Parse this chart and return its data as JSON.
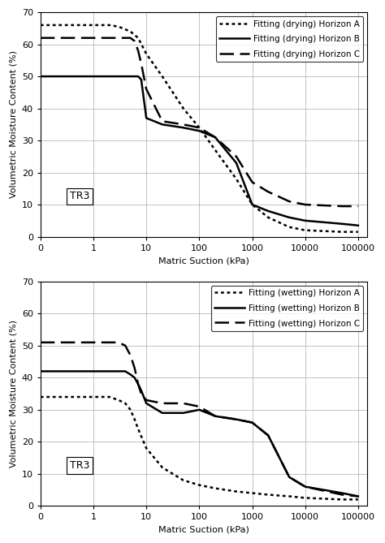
{
  "drying": {
    "ylabel": "Volumetric Moisture Content (%)",
    "xlabel": "Matric Suction (kPa)",
    "ylim": [
      0,
      70
    ],
    "label_box": "TR3",
    "horizonA": {
      "label": "Fitting (drying) Horizon A",
      "linestyle": "dotted",
      "linewidth": 1.8,
      "color": "black",
      "x": [
        0.1,
        0.5,
        1.0,
        2.0,
        3.0,
        5.0,
        7.0,
        10.0,
        20.0,
        50.0,
        100.0,
        200.0,
        500.0,
        1000.0,
        2000.0,
        5000.0,
        10000.0,
        50000.0,
        100000.0
      ],
      "y": [
        66,
        66,
        66,
        66,
        65.5,
        64,
        62,
        57,
        50,
        40,
        34,
        27,
        18,
        10,
        6,
        3,
        2,
        1.5,
        1.5
      ]
    },
    "horizonB": {
      "label": "Fitting (drying) Horizon B",
      "linestyle": "solid",
      "linewidth": 1.8,
      "color": "black",
      "x": [
        0.1,
        0.5,
        1.0,
        2.0,
        3.0,
        5.0,
        7.0,
        8.0,
        10.0,
        20.0,
        50.0,
        100.0,
        200.0,
        500.0,
        1000.0,
        2000.0,
        5000.0,
        10000.0,
        50000.0,
        100000.0
      ],
      "y": [
        50,
        50,
        50,
        50,
        50,
        50,
        50,
        49,
        37,
        35,
        34,
        33,
        31,
        23,
        10,
        8,
        6,
        5,
        4,
        3.5
      ]
    },
    "horizonC": {
      "label": "Fitting (drying) Horizon C",
      "linestyle": "dashed",
      "linewidth": 1.8,
      "color": "black",
      "x": [
        0.1,
        0.5,
        1.0,
        2.0,
        3.0,
        5.0,
        6.0,
        7.0,
        8.0,
        10.0,
        20.0,
        50.0,
        100.0,
        200.0,
        500.0,
        1000.0,
        2000.0,
        5000.0,
        10000.0,
        50000.0,
        100000.0
      ],
      "y": [
        62,
        62,
        62,
        62,
        62,
        62,
        61,
        58,
        54,
        46,
        36,
        35,
        34,
        31,
        25,
        17,
        14,
        11,
        10,
        9.5,
        9.5
      ]
    }
  },
  "wetting": {
    "ylabel": "Volumetric Moisture Content (%)",
    "xlabel": "Matric Suction (kPa)",
    "ylim": [
      0,
      70
    ],
    "label_box": "TR3",
    "horizonA": {
      "label": "Fitting (wetting) Horizon A",
      "linestyle": "dotted",
      "linewidth": 1.8,
      "color": "black",
      "x": [
        0.1,
        0.5,
        1.0,
        2.0,
        3.0,
        4.0,
        5.0,
        6.0,
        7.0,
        10.0,
        20.0,
        50.0,
        100.0,
        200.0,
        500.0,
        1000.0,
        2000.0,
        5000.0,
        10000.0,
        50000.0,
        100000.0
      ],
      "y": [
        34,
        34,
        34,
        34,
        33,
        32,
        30,
        27,
        24,
        18,
        12,
        8,
        6.5,
        5.5,
        4.5,
        4,
        3.5,
        3,
        2.5,
        2,
        2
      ]
    },
    "horizonB": {
      "label": "Fitting (wetting) Horizon B",
      "linestyle": "solid",
      "linewidth": 1.8,
      "color": "black",
      "x": [
        0.1,
        0.5,
        1.0,
        2.0,
        3.0,
        4.0,
        5.0,
        6.0,
        7.0,
        8.0,
        10.0,
        20.0,
        50.0,
        100.0,
        200.0,
        500.0,
        1000.0,
        2000.0,
        5000.0,
        10000.0,
        50000.0,
        100000.0
      ],
      "y": [
        42,
        42,
        42,
        42,
        42,
        42,
        41,
        40,
        38,
        36,
        32,
        29,
        29,
        30,
        28,
        27,
        26,
        22,
        9,
        6,
        4,
        3
      ]
    },
    "horizonC": {
      "label": "Fitting (wetting) Horizon C",
      "linestyle": "dashed",
      "linewidth": 1.8,
      "color": "black",
      "x": [
        0.1,
        0.5,
        1.0,
        1.5,
        2.0,
        3.0,
        4.0,
        5.0,
        6.0,
        7.0,
        8.0,
        10.0,
        20.0,
        50.0,
        100.0,
        200.0,
        500.0,
        1000.0,
        2000.0,
        5000.0,
        10000.0,
        50000.0,
        100000.0
      ],
      "y": [
        51,
        51,
        51,
        51,
        51,
        51,
        50,
        47,
        43,
        38,
        35,
        33,
        32,
        32,
        31,
        28,
        27,
        26,
        22,
        9,
        6,
        3.5,
        3
      ]
    }
  },
  "xtick_positions": [
    0.1,
    1,
    10,
    100,
    1000,
    10000,
    100000
  ],
  "xtick_labels": [
    "0",
    "1",
    "10",
    "100",
    "1000",
    "10000",
    "100000"
  ],
  "ytick_positions": [
    0,
    10,
    20,
    30,
    40,
    50,
    60,
    70
  ],
  "ytick_labels": [
    "0",
    "10",
    "20",
    "30",
    "40",
    "50",
    "60",
    "70"
  ],
  "grid_color": "#aaaaaa",
  "grid_linewidth": 0.5,
  "tick_fontsize": 8,
  "label_fontsize": 8,
  "legend_fontsize": 7.5,
  "background_color": "#ffffff"
}
